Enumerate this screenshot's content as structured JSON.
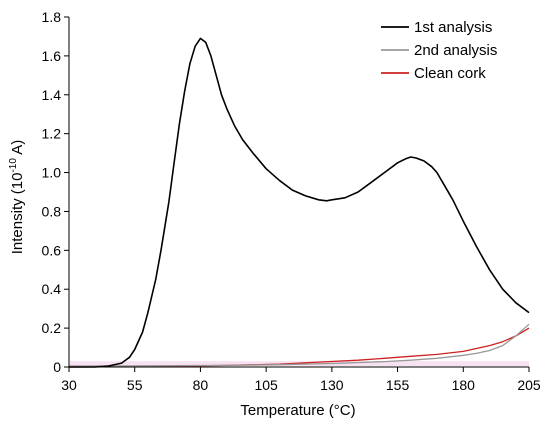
{
  "chart_data": {
    "type": "line",
    "xlabel": "Temperature (°C)",
    "ylabel_main": "Intensity (10",
    "ylabel_exp": "-10",
    "ylabel_tail": " A)",
    "xlim": [
      30,
      205
    ],
    "ylim": [
      0,
      1.8
    ],
    "xticks": [
      "30",
      "55",
      "80",
      "105",
      "130",
      "155",
      "180",
      "205"
    ],
    "yticks": [
      "0",
      "0.2",
      "0.4",
      "0.6",
      "0.8",
      "1.0",
      "1.2",
      "1.4",
      "1.6",
      "1.8"
    ],
    "grid": false,
    "legend_position": "top-right",
    "series": [
      {
        "name": "1st analysis",
        "color": "#000000",
        "x": [
          30,
          40,
          45,
          50,
          53,
          55,
          58,
          60,
          63,
          65,
          68,
          70,
          72,
          74,
          76,
          78,
          80,
          82,
          84,
          86,
          88,
          90,
          93,
          96,
          100,
          105,
          110,
          115,
          120,
          125,
          128,
          130,
          135,
          140,
          145,
          150,
          155,
          158,
          160,
          162,
          165,
          168,
          170,
          173,
          176,
          180,
          185,
          190,
          195,
          200,
          205
        ],
        "y": [
          0.0,
          0.0,
          0.005,
          0.02,
          0.05,
          0.09,
          0.18,
          0.28,
          0.45,
          0.6,
          0.85,
          1.05,
          1.25,
          1.42,
          1.56,
          1.65,
          1.69,
          1.67,
          1.6,
          1.5,
          1.4,
          1.33,
          1.24,
          1.17,
          1.1,
          1.02,
          0.96,
          0.91,
          0.88,
          0.86,
          0.855,
          0.86,
          0.87,
          0.9,
          0.95,
          1.0,
          1.05,
          1.07,
          1.08,
          1.075,
          1.06,
          1.03,
          1.0,
          0.93,
          0.86,
          0.75,
          0.62,
          0.5,
          0.4,
          0.33,
          0.28
        ]
      },
      {
        "name": "2nd analysis",
        "color": "#999999",
        "x": [
          30,
          60,
          90,
          110,
          130,
          150,
          160,
          170,
          180,
          185,
          190,
          195,
          200,
          205
        ],
        "y": [
          0.005,
          0.006,
          0.008,
          0.012,
          0.018,
          0.028,
          0.035,
          0.045,
          0.06,
          0.07,
          0.085,
          0.11,
          0.16,
          0.22
        ]
      },
      {
        "name": "Clean cork",
        "color": "#cc2222",
        "x": [
          30,
          60,
          90,
          110,
          125,
          140,
          150,
          160,
          170,
          180,
          185,
          190,
          195,
          200,
          205
        ],
        "y": [
          0.0,
          0.002,
          0.008,
          0.015,
          0.025,
          0.035,
          0.045,
          0.055,
          0.065,
          0.08,
          0.095,
          0.11,
          0.13,
          0.16,
          0.2
        ]
      }
    ]
  }
}
